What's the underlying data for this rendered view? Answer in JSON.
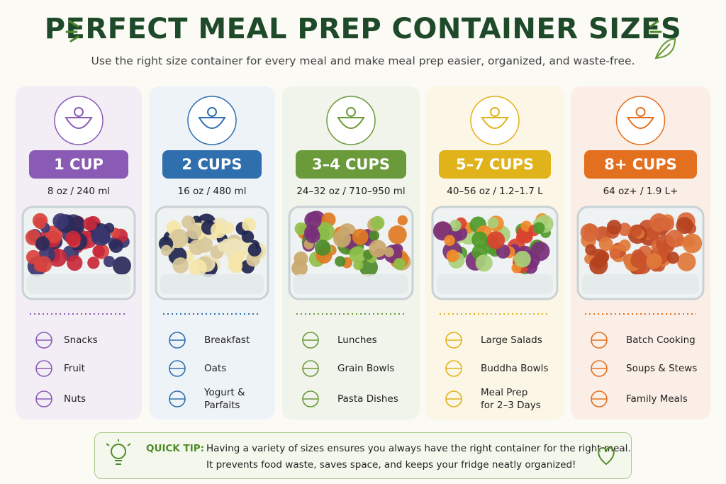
{
  "header": {
    "title": "PERFECT MEAL PREP CONTAINER SIZES",
    "subtitle": "Use the right size container for every meal and make meal prep easier, organized, and waste-free."
  },
  "columns": [
    {
      "size": "1 CUP",
      "measure": "8 oz / 240 ml",
      "uses": [
        "Snacks",
        "Fruit",
        "Nuts"
      ]
    },
    {
      "size": "2 CUPS",
      "measure": "16 oz / 480 ml",
      "uses": [
        "Breakfast",
        "Oats",
        "Yogurt &\nParfaits"
      ]
    },
    {
      "size": "3–4 CUPS",
      "measure": "24–32 oz / 710–950 ml",
      "uses": [
        "Lunches",
        "Grain Bowls",
        "Pasta Dishes"
      ]
    },
    {
      "size": "5–7 CUPS",
      "measure": "40–56 oz / 1.2–1.7 L",
      "uses": [
        "Large Salads",
        "Buddha Bowls",
        "Meal Prep\nfor 2–3 Days"
      ]
    },
    {
      "size": "8+ CUPS",
      "measure": "64 oz+ / 1.9 L+",
      "uses": [
        "Batch Cooking",
        "Soups & Stews",
        "Family Meals"
      ]
    }
  ],
  "tip": {
    "label": "QUICK TIP:",
    "lines": [
      "Having a variety of sizes ensures you always have the right container for the right meal.",
      "It prevents food waste, saves space, and keeps your fridge neatly organized!"
    ]
  }
}
